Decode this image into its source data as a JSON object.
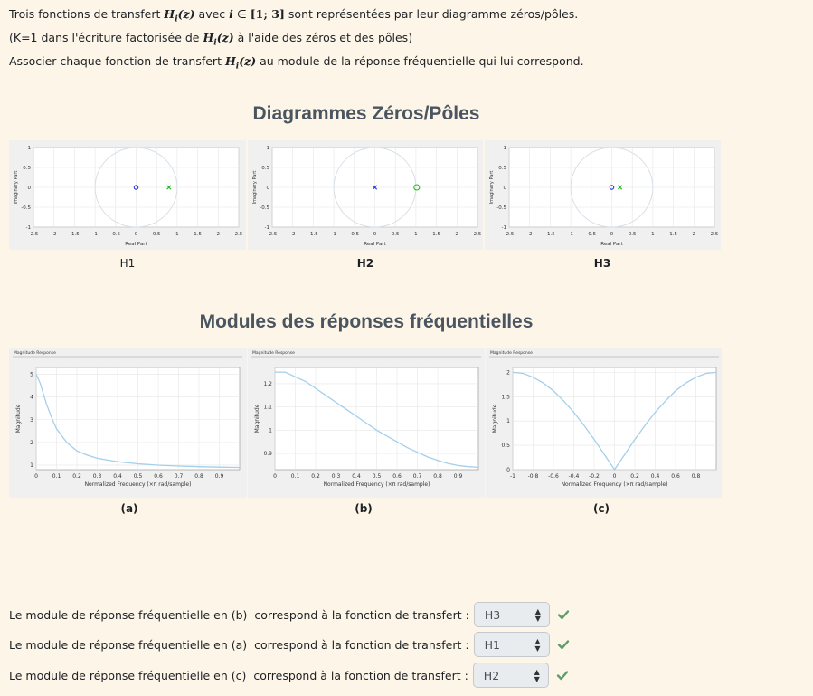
{
  "intro": {
    "l1_a": "Trois fonctions de transfert ",
    "l1_math": "H",
    "l1_sub": "i",
    "l1_math2": "(z)",
    "l1_b": " avec ",
    "l1_var": "i",
    "l1_in": " ∈ ",
    "l1_set": "[1; 3]",
    "l1_c": " sont représentées par leur diagramme zéros/pôles.",
    "l2_a": "(K=1 dans l'écriture factorisée de ",
    "l2_b": " à l'aide des zéros et des pôles)",
    "l3_a": "Associer chaque fonction de  transfert  ",
    "l3_b": " au module de la réponse fréquentielle qui lui correspond."
  },
  "titles": {
    "pz": "Diagrammes Zéros/Pôles",
    "freq": "Modules des réponses fréquentielles"
  },
  "pz_plots": {
    "xlabel": "Real Part",
    "ylabel": "Imaginary Part",
    "xticks": [
      "-2.5",
      "-2",
      "-1.5",
      "-1",
      "-0.5",
      "0",
      "0.5",
      "1",
      "1.5",
      "2",
      "2.5"
    ],
    "yticks": [
      "1",
      "0.5",
      "0",
      "-0.5",
      "-1"
    ],
    "items": [
      {
        "caption": "H1",
        "zero_color": "#3333dd",
        "pole_color": "#22bb22"
      },
      {
        "caption": "H2",
        "zero_color": "#22bb22",
        "pole_color": "#3333dd"
      },
      {
        "caption": "H3",
        "zero_color": "#3333dd",
        "pole_color": "#22bb22"
      }
    ]
  },
  "chart_data": [
    {
      "type": "scatter",
      "title": "",
      "xlabel": "Real Part",
      "ylabel": "Imaginary Part",
      "xlim": [
        -2.5,
        2.5
      ],
      "ylim": [
        -1,
        1
      ],
      "series": [
        {
          "marker": "o",
          "x": [
            0
          ],
          "y": [
            0
          ]
        },
        {
          "marker": "x",
          "x": [
            0.8
          ],
          "y": [
            0
          ]
        }
      ]
    },
    {
      "type": "scatter",
      "title": "",
      "xlabel": "Real Part",
      "ylabel": "Imaginary Part",
      "xlim": [
        -2.5,
        2.5
      ],
      "ylim": [
        -1,
        1
      ],
      "series": [
        {
          "marker": "x",
          "x": [
            0
          ],
          "y": [
            0
          ]
        },
        {
          "marker": "o",
          "x": [
            1.02
          ],
          "y": [
            0
          ]
        }
      ]
    },
    {
      "type": "scatter",
      "title": "",
      "xlabel": "Real Part",
      "ylabel": "Imaginary Part",
      "xlim": [
        -2.5,
        2.5
      ],
      "ylim": [
        -1,
        1
      ],
      "series": [
        {
          "marker": "o",
          "x": [
            0
          ],
          "y": [
            0
          ]
        },
        {
          "marker": "x",
          "x": [
            0.2
          ],
          "y": [
            0
          ]
        }
      ]
    },
    {
      "type": "line",
      "title": "Magnitude Response",
      "xlabel": "Normalized Frequency (×π rad/sample)",
      "ylabel": "Magnitude",
      "xlim": [
        0,
        1
      ],
      "ylim": [
        0.8,
        5.3
      ],
      "x": [
        0,
        0.02,
        0.05,
        0.08,
        0.1,
        0.15,
        0.2,
        0.25,
        0.3,
        0.4,
        0.5,
        0.6,
        0.7,
        0.8,
        0.9,
        1.0
      ],
      "y": [
        5,
        4.6,
        3.7,
        3.0,
        2.6,
        2.0,
        1.63,
        1.44,
        1.3,
        1.15,
        1.06,
        1.0,
        0.96,
        0.93,
        0.91,
        0.9
      ]
    },
    {
      "type": "line",
      "title": "Magnitude Response",
      "xlabel": "Normalized Frequency (×π rad/sample)",
      "ylabel": "Magnitude",
      "xlim": [
        0,
        1
      ],
      "ylim": [
        0.83,
        1.27
      ],
      "x": [
        0,
        0.05,
        0.1,
        0.15,
        0.2,
        0.25,
        0.3,
        0.35,
        0.4,
        0.45,
        0.5,
        0.55,
        0.6,
        0.65,
        0.7,
        0.75,
        0.8,
        0.85,
        0.9,
        0.95,
        1.0
      ],
      "y": [
        1.25,
        1.25,
        1.23,
        1.21,
        1.18,
        1.15,
        1.12,
        1.09,
        1.06,
        1.03,
        1.0,
        0.975,
        0.95,
        0.925,
        0.905,
        0.885,
        0.87,
        0.857,
        0.848,
        0.843,
        0.84
      ]
    },
    {
      "type": "line",
      "title": "Magnitude Response",
      "xlabel": "Normalized Frequency (×π rad/sample)",
      "ylabel": "Magnitude",
      "xlim": [
        -1,
        1
      ],
      "ylim": [
        0,
        2.1
      ],
      "x": [
        -1,
        -0.9,
        -0.8,
        -0.7,
        -0.6,
        -0.5,
        -0.4,
        -0.3,
        -0.2,
        -0.1,
        0,
        0.1,
        0.2,
        0.3,
        0.4,
        0.5,
        0.6,
        0.7,
        0.8,
        0.9,
        1
      ],
      "y": [
        2.0,
        1.98,
        1.9,
        1.78,
        1.62,
        1.41,
        1.18,
        0.91,
        0.62,
        0.31,
        0,
        0.31,
        0.62,
        0.91,
        1.18,
        1.41,
        1.62,
        1.78,
        1.9,
        1.98,
        2.0
      ]
    }
  ],
  "freq_plots": {
    "captions": [
      "(a)",
      "(b)",
      "(c)"
    ],
    "titles": [
      "Magnitude Response",
      "Magnitude Response",
      "Magnitude Response"
    ],
    "ylabel": "Magnitude",
    "xlabel": "Normalized Frequency (×π rad/sample)",
    "xticks_ab": [
      "0",
      "0.1",
      "0.2",
      "0.3",
      "0.4",
      "0.5",
      "0.6",
      "0.7",
      "0.8",
      "0.9"
    ],
    "xticks_c": [
      "-1",
      "-0.8",
      "-0.6",
      "-0.4",
      "-0.2",
      "0",
      "0.2",
      "0.4",
      "0.6",
      "0.8"
    ],
    "yticks_a": [
      "5",
      "4",
      "3",
      "2",
      "1"
    ],
    "yticks_b": [
      "1.2",
      "1.1",
      "1",
      "0.9"
    ],
    "yticks_c": [
      "2",
      "1.5",
      "1",
      "0.5",
      "0"
    ]
  },
  "questions": [
    {
      "text": "Le module de réponse fréquentielle en (b)  correspond à la fonction de transfert :",
      "selected": "H3"
    },
    {
      "text": "Le module de réponse fréquentielle en (a)  correspond à la fonction de transfert :",
      "selected": "H1"
    },
    {
      "text": "Le module de réponse fréquentielle en (c)  correspond à la fonction de transfert :",
      "selected": "H2"
    }
  ],
  "colors": {
    "accent": "#5c9e6b",
    "curve": "#a4cfea",
    "unit_circle": "#d5dde4"
  }
}
